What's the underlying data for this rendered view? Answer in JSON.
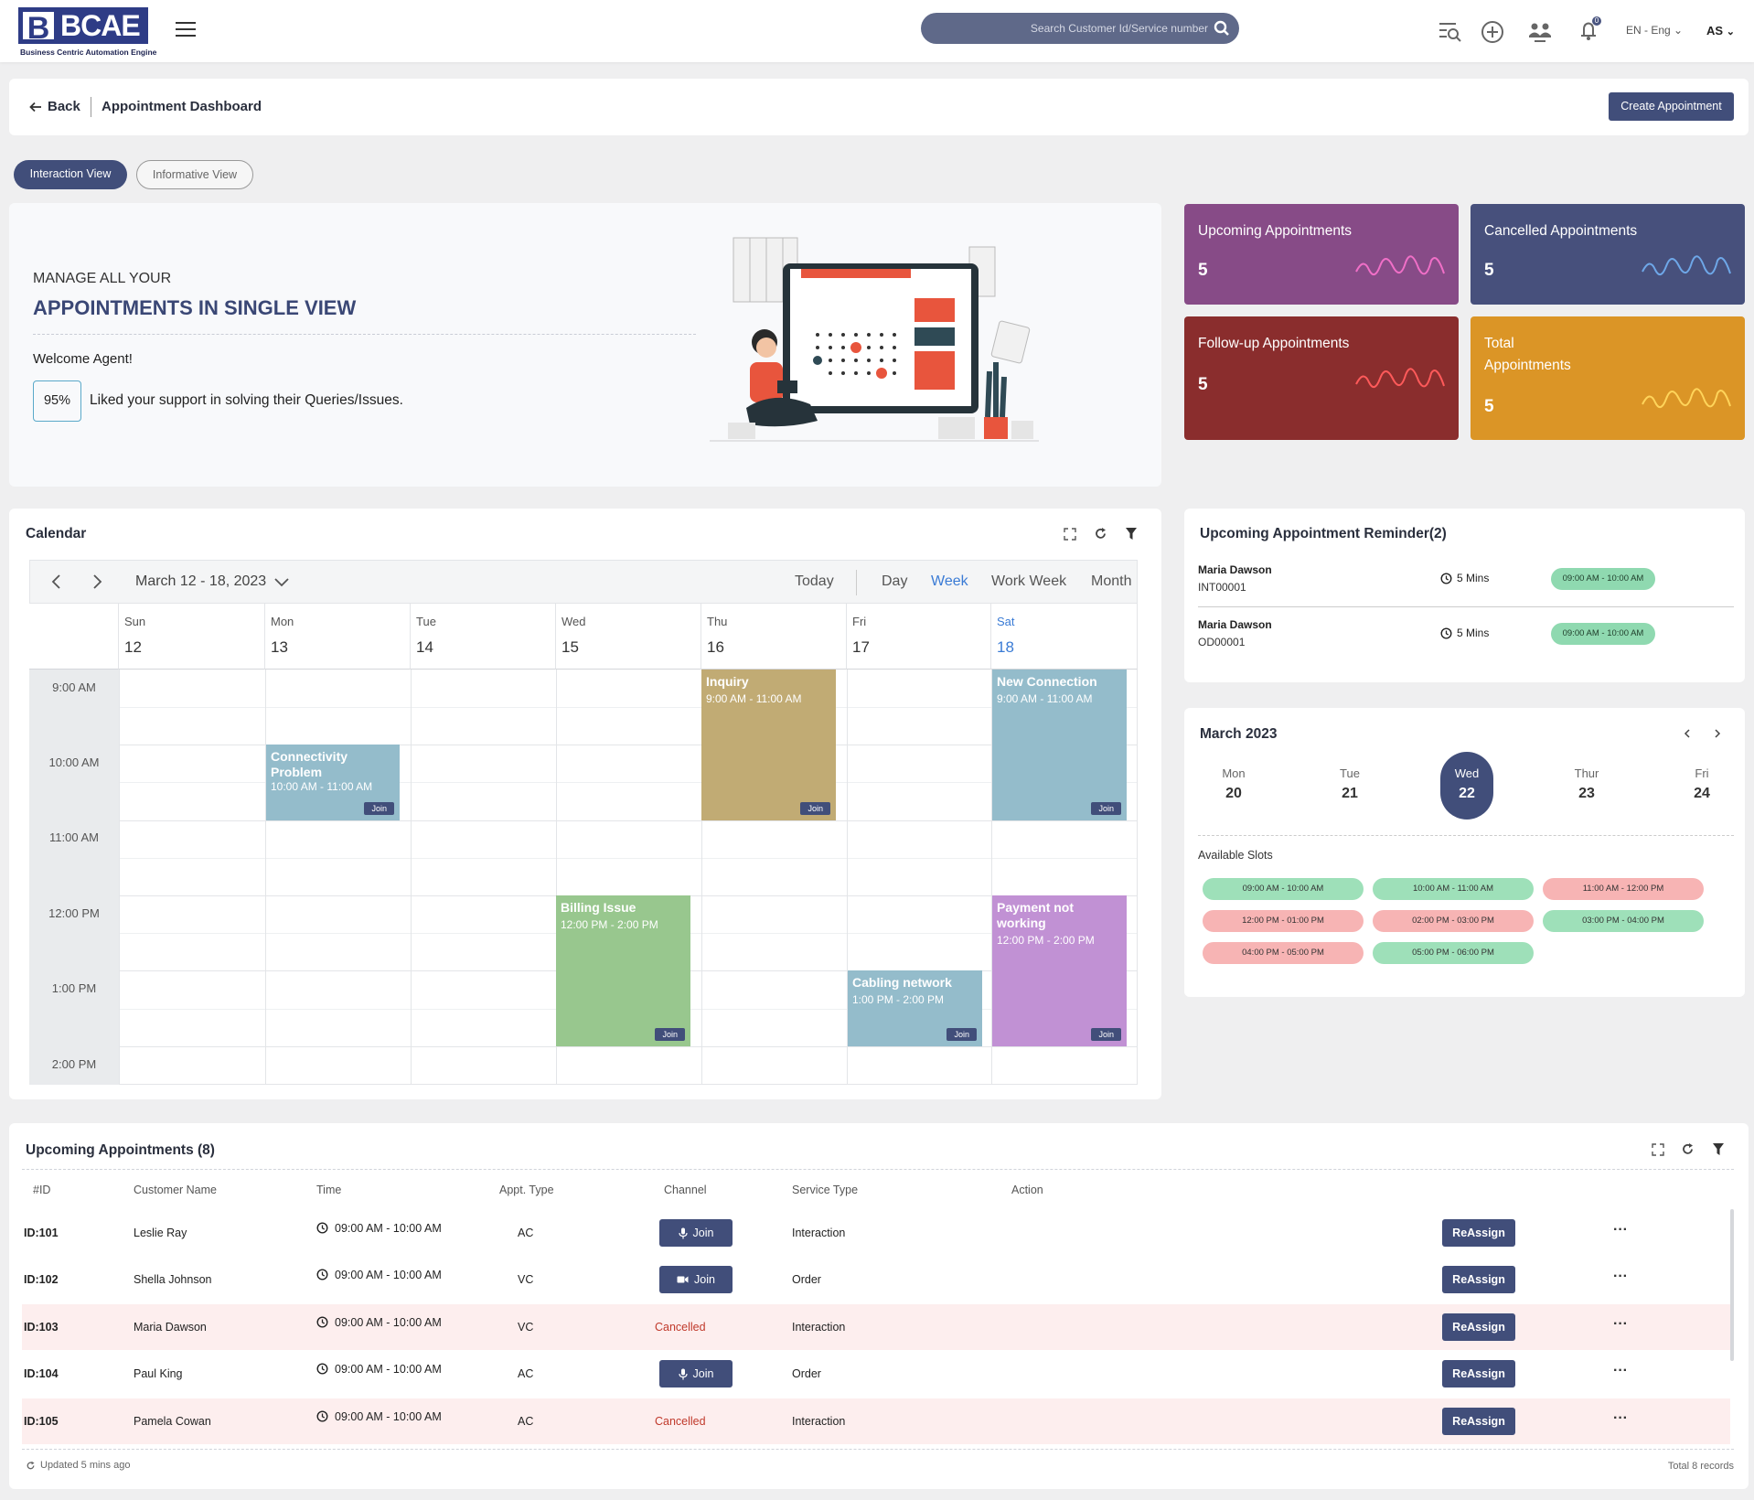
{
  "header": {
    "logo_text": "BCAE",
    "logo_letter": "B",
    "logo_subtitle": "Business Centric Automation Engine",
    "search_placeholder": "Search Customer Id/Service number",
    "notification_count": "0",
    "language": "EN - Eng",
    "user_initials": "AS"
  },
  "page": {
    "back_label": "Back",
    "title": "Appointment Dashboard",
    "create_label": "Create Appointment"
  },
  "tabs": [
    {
      "label": "Interaction View",
      "active": true
    },
    {
      "label": "Informative View",
      "active": false
    }
  ],
  "banner": {
    "line1": "MANAGE ALL YOUR",
    "line2": "APPOINTMENTS IN SINGLE VIEW",
    "welcome": "Welcome Agent!",
    "percent": "95%",
    "liked_text": "Liked your support in solving their Queries/Issues."
  },
  "stats": [
    {
      "label": "Upcoming Appointments",
      "value": "5",
      "color": "#874b87"
    },
    {
      "label": "Cancelled Appointments",
      "value": "5",
      "color": "#47507c"
    },
    {
      "label": "Follow-up Appointments",
      "value": "5",
      "color": "#8a2d2d"
    },
    {
      "label": "Total Appointments",
      "value": "5",
      "color": "#db9526"
    }
  ],
  "calendar": {
    "title": "Calendar",
    "range": "March 12 - 18, 2023",
    "views": [
      "Today",
      "Day",
      "Week",
      "Work Week",
      "Month"
    ],
    "active_view": "Week",
    "days": [
      {
        "name": "Sun",
        "date": "12"
      },
      {
        "name": "Mon",
        "date": "13"
      },
      {
        "name": "Tue",
        "date": "14"
      },
      {
        "name": "Wed",
        "date": "15"
      },
      {
        "name": "Thu",
        "date": "16"
      },
      {
        "name": "Fri",
        "date": "17"
      },
      {
        "name": "Sat",
        "date": "18"
      }
    ],
    "times": [
      "9:00 AM",
      "10:00 AM",
      "11:00 AM",
      "12:00 PM",
      "1:00 PM",
      "2:00 PM"
    ],
    "join_label": "Join",
    "events": [
      {
        "title": "Connectivity Problem",
        "time": "10:00 AM - 11:00 AM",
        "color": "#94bccb"
      },
      {
        "title": "Inquiry",
        "time": "9:00 AM - 11:00 AM",
        "color": "#c1ab74"
      },
      {
        "title": "New Connection",
        "time": "9:00 AM - 11:00 AM",
        "color": "#94bccb"
      },
      {
        "title": "Billing Issue",
        "time": "12:00 PM - 2:00 PM",
        "color": "#98c78e"
      },
      {
        "title": "Cabling network",
        "time": "1:00 PM - 2:00 PM",
        "color": "#94bccb"
      },
      {
        "title": "Payment not working",
        "time": "12:00 PM - 2:00 PM",
        "color": "#c191d4"
      }
    ]
  },
  "reminder": {
    "title": "Upcoming Appointment Reminder(2)",
    "items": [
      {
        "name": "Maria Dawson",
        "id": "INT00001",
        "duration": "5 Mins",
        "slot": "09:00 AM - 10:00 AM"
      },
      {
        "name": "Maria Dawson",
        "id": "OD00001",
        "duration": "5 Mins",
        "slot": "09:00 AM - 10:00 AM"
      }
    ]
  },
  "mini_calendar": {
    "title": "March 2023",
    "days": [
      {
        "name": "Mon",
        "date": "20"
      },
      {
        "name": "Tue",
        "date": "21"
      },
      {
        "name": "Wed",
        "date": "22"
      },
      {
        "name": "Thur",
        "date": "23"
      },
      {
        "name": "Fri",
        "date": "24"
      }
    ],
    "selected": "22",
    "slots_label": "Available Slots",
    "slots": [
      {
        "label": "09:00 AM - 10:00 AM",
        "status": "available"
      },
      {
        "label": "10:00 AM - 11:00 AM",
        "status": "available"
      },
      {
        "label": "11:00 AM - 12:00 PM",
        "status": "booked"
      },
      {
        "label": "12:00 PM - 01:00 PM",
        "status": "booked"
      },
      {
        "label": "02:00 PM - 03:00 PM",
        "status": "booked"
      },
      {
        "label": "03:00 PM - 04:00 PM",
        "status": "available"
      },
      {
        "label": "04:00 PM - 05:00 PM",
        "status": "booked"
      },
      {
        "label": "05:00 PM - 06:00 PM",
        "status": "available"
      }
    ]
  },
  "table": {
    "title": "Upcoming Appointments (8)",
    "columns": [
      "#ID",
      "Customer Name",
      "Time",
      "Appt. Type",
      "Channel",
      "Service Type",
      "Action"
    ],
    "rows": [
      {
        "id": "ID:101",
        "name": "Leslie Ray",
        "time": "09:00 AM - 10:00 AM",
        "type": "AC",
        "channel": "Join",
        "channel_icon": "mic-icon",
        "service": "Interaction",
        "cancelled": false
      },
      {
        "id": "ID:102",
        "name": "Shella Johnson",
        "time": "09:00 AM - 10:00 AM",
        "type": "VC",
        "channel": "Join",
        "channel_icon": "video-icon",
        "service": "Order",
        "cancelled": false
      },
      {
        "id": "ID:103",
        "name": "Maria Dawson",
        "time": "09:00 AM - 10:00 AM",
        "type": "VC",
        "channel": "Cancelled",
        "channel_icon": "",
        "service": "Interaction",
        "cancelled": true
      },
      {
        "id": "ID:104",
        "name": "Paul King",
        "time": "09:00 AM - 10:00 AM",
        "type": "AC",
        "channel": "Join",
        "channel_icon": "mic-icon",
        "service": "Order",
        "cancelled": false
      },
      {
        "id": "ID:105",
        "name": "Pamela Cowan",
        "time": "09:00 AM - 10:00 AM",
        "type": "AC",
        "channel": "Cancelled",
        "channel_icon": "",
        "service": "Interaction",
        "cancelled": true
      }
    ],
    "reassign_label": "ReAssign",
    "more_label": "···",
    "updated": "Updated 5 mins ago",
    "total": "Total 8 records"
  }
}
